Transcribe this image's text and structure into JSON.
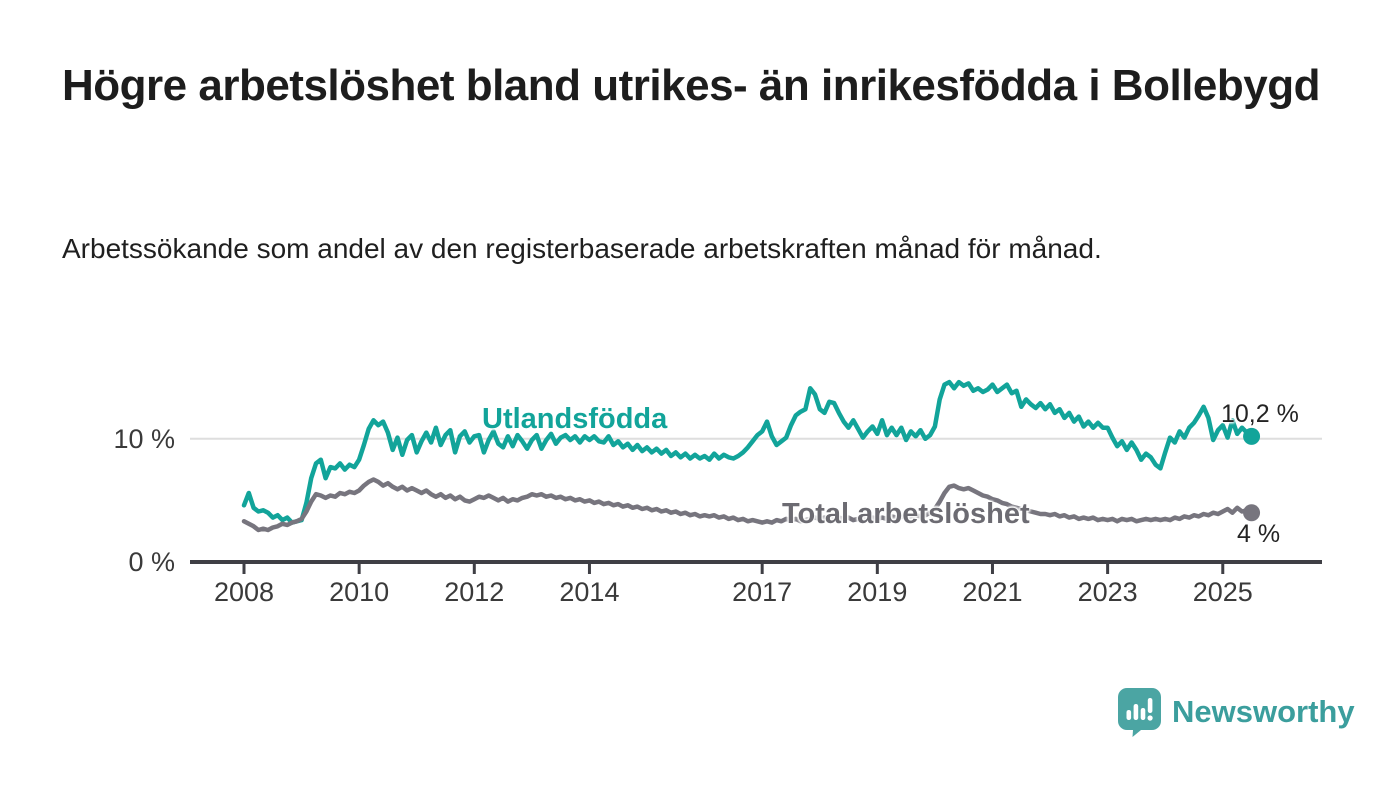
{
  "header": {
    "title": "Högre arbetslöshet bland utrikes- än inrikesfödda i Bollebygd",
    "subtitle": "Arbetssökande som andel av den registerbaserade arbetskraften månad för månad."
  },
  "chart_data": {
    "type": "line",
    "title": "Högre arbetslöshet bland utrikes- än inrikesfödda i Bollebygd",
    "subtitle": "Arbetssökande som andel av den registerbaserade arbetskraften månad för månad.",
    "unit": "percent",
    "frequency": "monthly",
    "x_start_year": 2008,
    "x_end": "2025-07",
    "x_tick_years": [
      2008,
      2010,
      2012,
      2014,
      2017,
      2019,
      2021,
      2023,
      2025
    ],
    "y_ticks": [
      {
        "value": 0,
        "label": "0 %"
      },
      {
        "value": 10,
        "label": "10 %"
      }
    ],
    "ylim": [
      0,
      16
    ],
    "grid": "single-horizontal-gridline-at-10",
    "legend_position": "inline-labels-on-lines",
    "series": [
      {
        "name": "Utlandsfödda",
        "color": "#12a49a",
        "end_label": "10,2 %",
        "end_value": 10.2,
        "values": [
          4.6,
          5.6,
          4.4,
          4.1,
          4.2,
          4.0,
          3.6,
          3.8,
          3.4,
          3.6,
          3.2,
          3.3,
          3.4,
          4.8,
          6.8,
          8.0,
          8.3,
          6.8,
          7.7,
          7.6,
          8.0,
          7.5,
          7.9,
          7.7,
          8.3,
          9.5,
          10.8,
          11.5,
          11.1,
          11.4,
          10.5,
          9.1,
          10.1,
          8.7,
          9.9,
          10.3,
          8.9,
          9.8,
          10.5,
          9.7,
          10.9,
          9.5,
          10.3,
          10.7,
          8.9,
          10.2,
          10.6,
          9.7,
          10.2,
          10.3,
          8.9,
          9.9,
          10.6,
          9.6,
          9.3,
          10.2,
          9.4,
          10.3,
          9.8,
          9.2,
          9.9,
          10.3,
          9.2,
          9.9,
          10.4,
          9.6,
          10.1,
          10.3,
          9.9,
          10.2,
          9.7,
          10.2,
          9.9,
          10.2,
          9.8,
          9.7,
          10.2,
          9.5,
          9.8,
          9.3,
          9.6,
          9.1,
          9.5,
          9.0,
          9.3,
          8.9,
          9.2,
          8.8,
          9.1,
          8.6,
          8.9,
          8.5,
          8.8,
          8.4,
          8.7,
          8.4,
          8.6,
          8.3,
          8.8,
          8.4,
          8.7,
          8.5,
          8.4,
          8.6,
          8.9,
          9.3,
          9.8,
          10.3,
          10.6,
          11.4,
          10.2,
          9.5,
          9.8,
          10.1,
          11.1,
          11.9,
          12.2,
          12.4,
          14.1,
          13.6,
          12.4,
          12.1,
          13.0,
          12.9,
          12.1,
          11.4,
          10.9,
          11.5,
          10.8,
          10.1,
          10.6,
          11.0,
          10.4,
          11.5,
          10.3,
          10.9,
          10.3,
          10.9,
          9.9,
          10.6,
          10.2,
          10.7,
          10.0,
          10.3,
          11.0,
          13.2,
          14.4,
          14.6,
          14.1,
          14.6,
          14.3,
          14.5,
          13.9,
          14.1,
          13.8,
          14.0,
          14.4,
          13.8,
          14.1,
          14.4,
          13.7,
          13.9,
          12.6,
          13.2,
          12.8,
          12.5,
          12.9,
          12.4,
          12.8,
          12.1,
          12.4,
          11.7,
          12.1,
          11.4,
          11.8,
          11.0,
          11.4,
          10.9,
          11.3,
          10.9,
          10.9,
          10.1,
          9.4,
          9.8,
          9.1,
          9.7,
          9.1,
          8.3,
          8.8,
          8.5,
          7.9,
          7.6,
          8.9,
          10.1,
          9.7,
          10.6,
          10.1,
          10.9,
          11.3,
          11.9,
          12.6,
          11.7,
          9.9,
          10.7,
          11.1,
          10.1,
          11.5,
          10.4,
          10.9,
          10.5,
          10.2
        ]
      },
      {
        "name": "Total arbetslöshet",
        "color": "#77757e",
        "label_color": "#6c6b72",
        "end_label": "4 %",
        "end_value": 4.0,
        "values": [
          3.3,
          3.1,
          2.9,
          2.6,
          2.7,
          2.6,
          2.8,
          2.9,
          3.1,
          3.0,
          3.2,
          3.3,
          3.5,
          4.1,
          4.9,
          5.5,
          5.4,
          5.2,
          5.4,
          5.3,
          5.6,
          5.5,
          5.7,
          5.6,
          5.8,
          6.2,
          6.5,
          6.7,
          6.5,
          6.2,
          6.4,
          6.1,
          5.9,
          6.1,
          5.8,
          6.0,
          5.8,
          5.6,
          5.8,
          5.5,
          5.3,
          5.5,
          5.2,
          5.4,
          5.1,
          5.3,
          5.0,
          4.9,
          5.1,
          5.3,
          5.2,
          5.4,
          5.2,
          5.0,
          5.2,
          4.9,
          5.1,
          5.0,
          5.2,
          5.3,
          5.5,
          5.4,
          5.5,
          5.3,
          5.4,
          5.2,
          5.3,
          5.1,
          5.2,
          5.0,
          5.1,
          4.9,
          5.0,
          4.8,
          4.9,
          4.7,
          4.8,
          4.6,
          4.7,
          4.5,
          4.6,
          4.4,
          4.5,
          4.3,
          4.4,
          4.2,
          4.3,
          4.1,
          4.2,
          4.0,
          4.1,
          3.9,
          4.0,
          3.8,
          3.9,
          3.7,
          3.8,
          3.7,
          3.8,
          3.6,
          3.7,
          3.5,
          3.6,
          3.4,
          3.5,
          3.3,
          3.4,
          3.3,
          3.2,
          3.3,
          3.2,
          3.4,
          3.3,
          3.5,
          3.4,
          3.5,
          3.3,
          3.4,
          3.5,
          3.6,
          3.5,
          3.6,
          3.4,
          3.5,
          3.6,
          3.5,
          3.6,
          3.4,
          3.5,
          3.6,
          3.5,
          3.6,
          3.5,
          3.6,
          3.5,
          3.7,
          3.6,
          3.7,
          3.6,
          3.7,
          3.8,
          3.7,
          3.8,
          4.0,
          4.3,
          4.9,
          5.6,
          6.1,
          6.2,
          6.0,
          5.9,
          6.0,
          5.8,
          5.6,
          5.4,
          5.3,
          5.1,
          5.0,
          4.8,
          4.7,
          4.5,
          4.4,
          4.3,
          4.2,
          4.1,
          4.0,
          3.9,
          3.9,
          3.8,
          3.9,
          3.7,
          3.8,
          3.6,
          3.7,
          3.5,
          3.6,
          3.5,
          3.6,
          3.4,
          3.5,
          3.4,
          3.5,
          3.3,
          3.5,
          3.4,
          3.5,
          3.3,
          3.4,
          3.5,
          3.4,
          3.5,
          3.4,
          3.5,
          3.4,
          3.6,
          3.5,
          3.7,
          3.6,
          3.8,
          3.7,
          3.9,
          3.8,
          4.0,
          3.9,
          4.1,
          4.3,
          4.0,
          4.4,
          4.1,
          4.2,
          4.0
        ]
      }
    ],
    "axis_color": "#3f3f45",
    "gridline_color": "#dedede"
  },
  "footer": {
    "brand": "Newsworthy",
    "brand_color": "#3b9e9d",
    "logo_color": "#4ba5a3",
    "logo_icon": "speech-bubble-bar-chart"
  }
}
